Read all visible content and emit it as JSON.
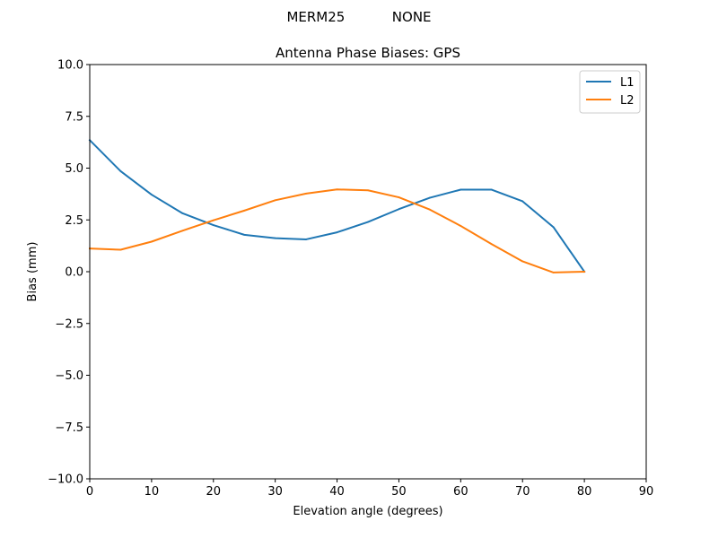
{
  "suptitle": "MERM25           NONE",
  "chart_data": {
    "type": "line",
    "title": "Antenna Phase Biases: GPS",
    "xlabel": "Elevation angle (degrees)",
    "ylabel": "Bias (mm)",
    "xlim": [
      0,
      90
    ],
    "ylim": [
      -10,
      10
    ],
    "xticks": [
      0,
      10,
      20,
      30,
      40,
      50,
      60,
      70,
      80,
      90
    ],
    "xtick_labels": [
      "0",
      "10",
      "20",
      "30",
      "40",
      "50",
      "60",
      "70",
      "80",
      "90"
    ],
    "yticks": [
      -10,
      -7.5,
      -5,
      -2.5,
      0,
      2.5,
      5,
      7.5,
      10
    ],
    "ytick_labels": [
      "−10.0",
      "−7.5",
      "−5.0",
      "−2.5",
      "0.0",
      "2.5",
      "5.0",
      "7.5",
      "10.0"
    ],
    "grid": false,
    "legend_position": "top-right",
    "series": [
      {
        "name": "L1",
        "color": "#1f77b4",
        "x": [
          0,
          5,
          10,
          15,
          20,
          25,
          30,
          35,
          40,
          45,
          50,
          55,
          60,
          65,
          70,
          75,
          80
        ],
        "y": [
          6.35,
          4.85,
          3.72,
          2.82,
          2.25,
          1.78,
          1.62,
          1.56,
          1.9,
          2.4,
          3.02,
          3.57,
          3.96,
          3.96,
          3.4,
          2.15,
          0.0
        ]
      },
      {
        "name": "L2",
        "color": "#ff7f0e",
        "x": [
          0,
          5,
          10,
          15,
          20,
          25,
          30,
          35,
          40,
          45,
          50,
          55,
          60,
          65,
          70,
          75,
          80
        ],
        "y": [
          1.12,
          1.06,
          1.45,
          1.98,
          2.48,
          2.95,
          3.45,
          3.77,
          3.97,
          3.93,
          3.59,
          3.0,
          2.21,
          1.33,
          0.5,
          -0.04,
          0.0
        ]
      }
    ]
  }
}
